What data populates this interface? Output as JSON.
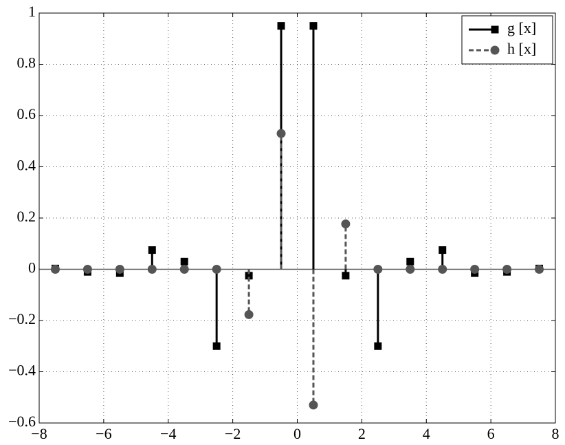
{
  "chart_data": {
    "type": "stem",
    "x": [
      -7.5,
      -6.5,
      -5.5,
      -4.5,
      -3.5,
      -2.5,
      -1.5,
      -0.5,
      0.5,
      1.5,
      2.5,
      3.5,
      4.5,
      5.5,
      6.5,
      7.5
    ],
    "series": [
      {
        "name": "g [x]",
        "color": "#000000",
        "marker": "square",
        "linestyle": "solid",
        "values": [
          0.003,
          -0.01,
          -0.015,
          0.075,
          0.03,
          -0.3,
          -0.025,
          0.95,
          0.95,
          -0.025,
          -0.3,
          0.03,
          0.075,
          -0.015,
          -0.01,
          0.003
        ]
      },
      {
        "name": "h [x]",
        "color": "#555555",
        "marker": "circle",
        "linestyle": "dashed",
        "values": [
          0,
          0,
          0,
          0,
          0,
          0,
          -0.177,
          0.53,
          -0.53,
          0.177,
          0,
          0,
          0,
          0,
          0,
          0
        ]
      }
    ],
    "xlim": [
      -8,
      8
    ],
    "xticks": [
      {
        "value": -8,
        "label": "−8"
      },
      {
        "value": -6,
        "label": "−6"
      },
      {
        "value": -4,
        "label": "−4"
      },
      {
        "value": -2,
        "label": "−2"
      },
      0,
      2,
      4,
      6,
      8
    ],
    "ylim": [
      -0.6,
      1
    ],
    "yticks": [
      {
        "value": -0.6,
        "label": "−0.6"
      },
      {
        "value": -0.4,
        "label": "−0.4"
      },
      {
        "value": -0.2,
        "label": "−0.2"
      },
      0,
      0.2,
      0.4,
      0.6,
      0.8,
      1
    ],
    "grid": true,
    "legend": "upper-right"
  }
}
